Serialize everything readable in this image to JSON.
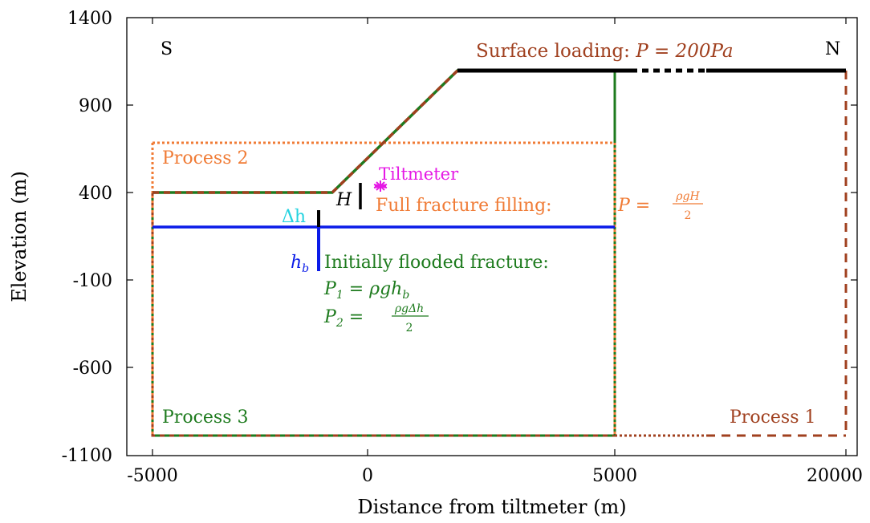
{
  "colors": {
    "frame": "#000000",
    "brown": "#a0401f",
    "orange": "#f07b35",
    "green": "#1e7b1e",
    "blue": "#0a1be8",
    "cyan": "#25d3e0",
    "magenta": "#e519e5",
    "black": "#000000"
  },
  "axes": {
    "xlabel": "Distance from tiltmeter (m)",
    "ylabel": "Elevation (m)",
    "x_ticks": [
      "-5000",
      "0",
      "5000",
      "20000"
    ],
    "y_ticks": [
      "1400",
      "900",
      "400",
      "-100",
      "-600",
      "-1100"
    ]
  },
  "labels": {
    "south": "S",
    "north": "N",
    "surface_loading_prefix": "Surface loading: ",
    "surface_loading_formula": "P = 200Pa",
    "process1": "Process 1",
    "process2": "Process 2",
    "process3": "Process 3",
    "tiltmeter": "Tiltmeter",
    "H": "H",
    "full_fracture_filling": "Full fracture filling:",
    "formula_P_left": "P =",
    "formula_P_num": "ρgH",
    "formula_P_den": "2",
    "delta_h": "Δh",
    "h_b": "h",
    "h_b_sub": "b",
    "initially_flooded": "Initially flooded fracture:",
    "p1_formula": "P",
    "p1_sub": "1",
    "p1_rest": " = ρgh",
    "p1_rest_sub": "b",
    "p2_formula": "P",
    "p2_sub": "2",
    "p2_eq": " =",
    "p2_num": "ρgΔh",
    "p2_den": "2"
  },
  "chart_data": {
    "type": "diagram",
    "x_axis_segments": [
      {
        "range": [
          -5000,
          5000
        ],
        "scale": "linear"
      },
      {
        "range": [
          5000,
          20000
        ],
        "scale": "compressed"
      }
    ],
    "ylim": [
      -1100,
      1400
    ],
    "topography": {
      "points": [
        [
          -5000,
          400
        ],
        [
          -1000,
          400
        ],
        [
          2000,
          1100
        ],
        [
          20000,
          1100
        ]
      ]
    },
    "water_table_level": 230,
    "process2_box_top": 700,
    "domain_bottom": -1000,
    "surface_load_pressure": "200Pa",
    "tiltmeter": {
      "x": 0,
      "y": 430
    }
  }
}
